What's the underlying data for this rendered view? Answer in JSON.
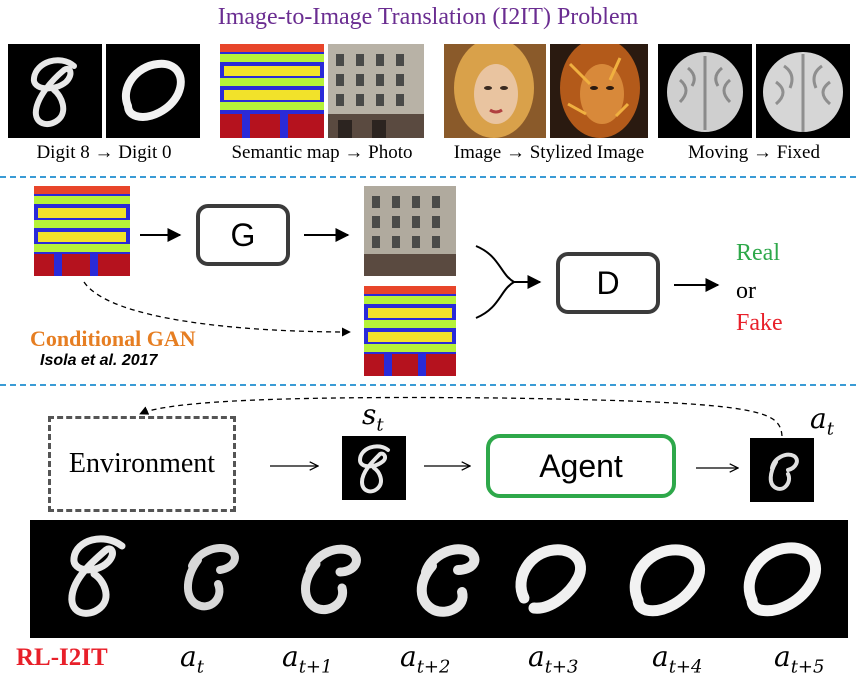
{
  "title": "Image-to-Image Translation (I2IT) Problem",
  "examples": [
    {
      "caption": "Digit 8 → Digit 0"
    },
    {
      "caption": "Semantic map → Photo"
    },
    {
      "caption": "Image → Stylized Image"
    },
    {
      "caption": "Moving → Fixed"
    }
  ],
  "gan": {
    "generator_label": "G",
    "discriminator_label": "D",
    "name": "Conditional GAN",
    "reference": "Isola et al. 2017",
    "real": "Real",
    "or": "or",
    "fake": "Fake",
    "real_color": "#2ea84a",
    "fake_color": "#e8202a"
  },
  "rl": {
    "environment_label": "Environment",
    "agent_label": "Agent",
    "state_symbol": "s",
    "state_subscript": "t",
    "action_symbol": "a",
    "action_subscript": "t",
    "name": "RL-I2IT",
    "sequence": [
      {
        "symbol": "a",
        "sub": "t"
      },
      {
        "symbol": "a",
        "sub": "t+1"
      },
      {
        "symbol": "a",
        "sub": "t+2"
      },
      {
        "symbol": "a",
        "sub": "t+3"
      },
      {
        "symbol": "a",
        "sub": "t+4"
      },
      {
        "symbol": "a",
        "sub": "t+5"
      }
    ]
  }
}
